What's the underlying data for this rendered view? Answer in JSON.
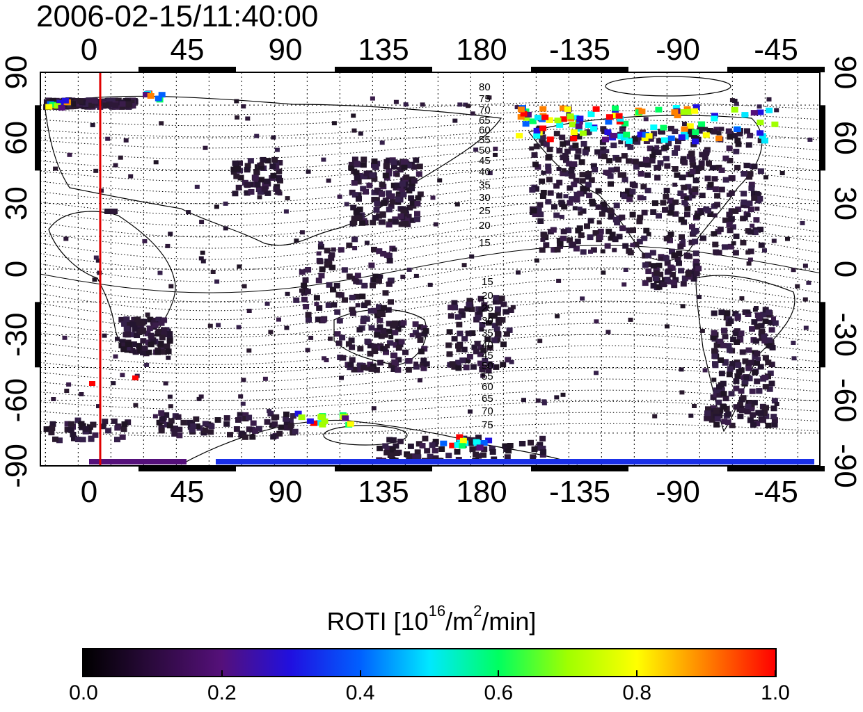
{
  "title": "2006-02-15/11:40:00",
  "map": {
    "lon_ticks": [
      "0",
      "45",
      "90",
      "135",
      "180",
      "-135",
      "-90",
      "-45"
    ],
    "lat_ticks": [
      "90",
      "60",
      "30",
      "0",
      "-30",
      "-60",
      "-90"
    ],
    "red_line_longitude": 5,
    "contour_labels_north": [
      "80",
      "75",
      "70",
      "65",
      "60",
      "55",
      "50",
      "45",
      "40",
      "35",
      "30",
      "25",
      "20",
      "15"
    ],
    "contour_labels_south": [
      "15",
      "20",
      "25",
      "30",
      "35",
      "40",
      "45",
      "50",
      "55",
      "60",
      "65",
      "70",
      "75"
    ]
  },
  "colorbar": {
    "title_main": "ROTI  [10",
    "title_sup1": "16",
    "title_mid": "/m",
    "title_sup2": "2",
    "title_end": "/min]",
    "ticks": [
      "0.0",
      "0.2",
      "0.4",
      "0.6",
      "0.8",
      "1.0"
    ],
    "colors": [
      "#000000",
      "#2b0a3d",
      "#55107a",
      "#2010e0",
      "#0060ff",
      "#00e8ff",
      "#00ff60",
      "#a0ff00",
      "#ffff00",
      "#ff8000",
      "#ff0000"
    ]
  }
}
